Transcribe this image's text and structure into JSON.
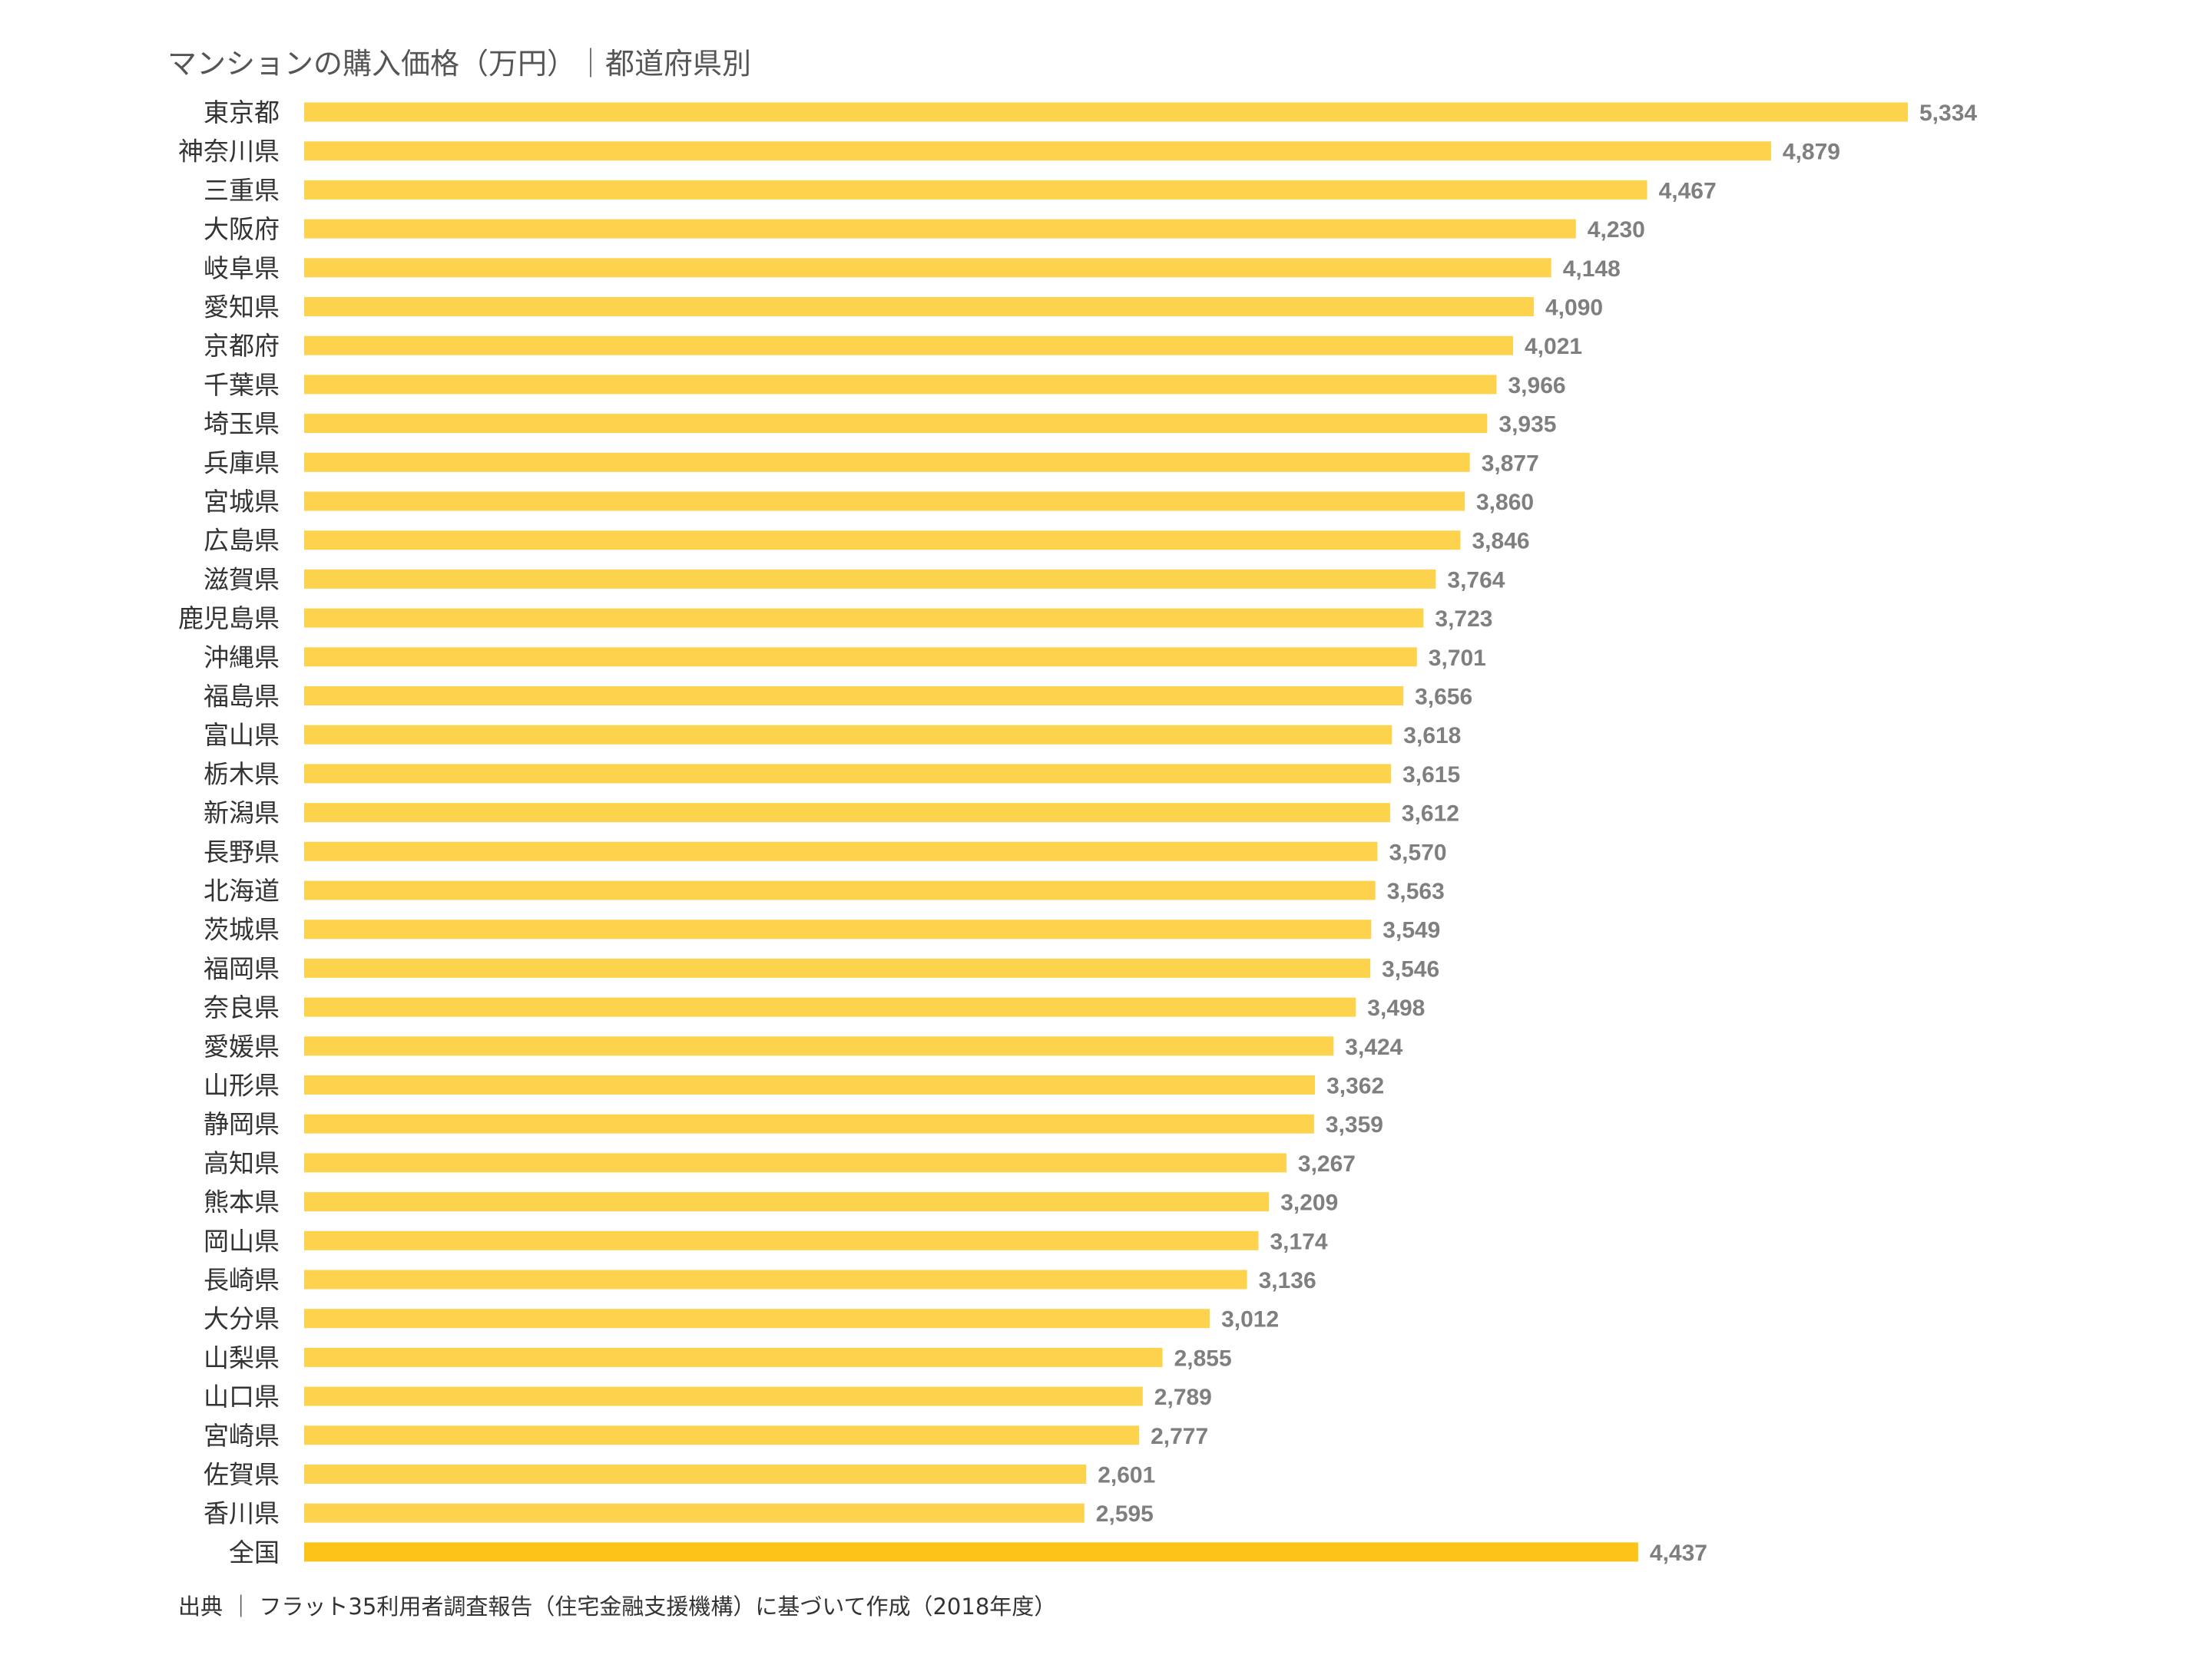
{
  "chart_data": {
    "type": "bar",
    "orientation": "horizontal",
    "title": "マンションの購入価格（万円）｜都道府県別",
    "source": "出典 ｜ フラット35利用者調査報告（住宅金融支援機構）に基づいて作成（2018年度）",
    "categories": [
      "東京都",
      "神奈川県",
      "三重県",
      "大阪府",
      "岐阜県",
      "愛知県",
      "京都府",
      "千葉県",
      "埼玉県",
      "兵庫県",
      "宮城県",
      "広島県",
      "滋賀県",
      "鹿児島県",
      "沖縄県",
      "福島県",
      "富山県",
      "栃木県",
      "新潟県",
      "長野県",
      "北海道",
      "茨城県",
      "福岡県",
      "奈良県",
      "愛媛県",
      "山形県",
      "静岡県",
      "高知県",
      "熊本県",
      "岡山県",
      "長崎県",
      "大分県",
      "山梨県",
      "山口県",
      "宮崎県",
      "佐賀県",
      "香川県",
      "全国"
    ],
    "values": [
      5334,
      4879,
      4467,
      4230,
      4148,
      4090,
      4021,
      3966,
      3935,
      3877,
      3860,
      3846,
      3764,
      3723,
      3701,
      3656,
      3618,
      3615,
      3612,
      3570,
      3563,
      3549,
      3546,
      3498,
      3424,
      3362,
      3359,
      3267,
      3209,
      3174,
      3136,
      3012,
      2855,
      2789,
      2777,
      2601,
      2595,
      4437
    ],
    "value_labels": [
      "5,334",
      "4,879",
      "4,467",
      "4,230",
      "4,148",
      "4,090",
      "4,021",
      "3,966",
      "3,935",
      "3,877",
      "3,860",
      "3,846",
      "3,764",
      "3,723",
      "3,701",
      "3,656",
      "3,618",
      "3,615",
      "3,612",
      "3,570",
      "3,563",
      "3,549",
      "3,546",
      "3,498",
      "3,424",
      "3,362",
      "3,359",
      "3,267",
      "3,209",
      "3,174",
      "3,136",
      "3,012",
      "2,855",
      "2,789",
      "2,777",
      "2,601",
      "2,595",
      "4,437"
    ],
    "xlim": [
      0,
      5334
    ],
    "grid": false,
    "legend": "none",
    "bar_color": "#FDD34E",
    "highlight_color": "#FCC419",
    "highlight_category": "全国",
    "value_label_color": "#7F7F7F",
    "category_label_color": "#333333"
  }
}
